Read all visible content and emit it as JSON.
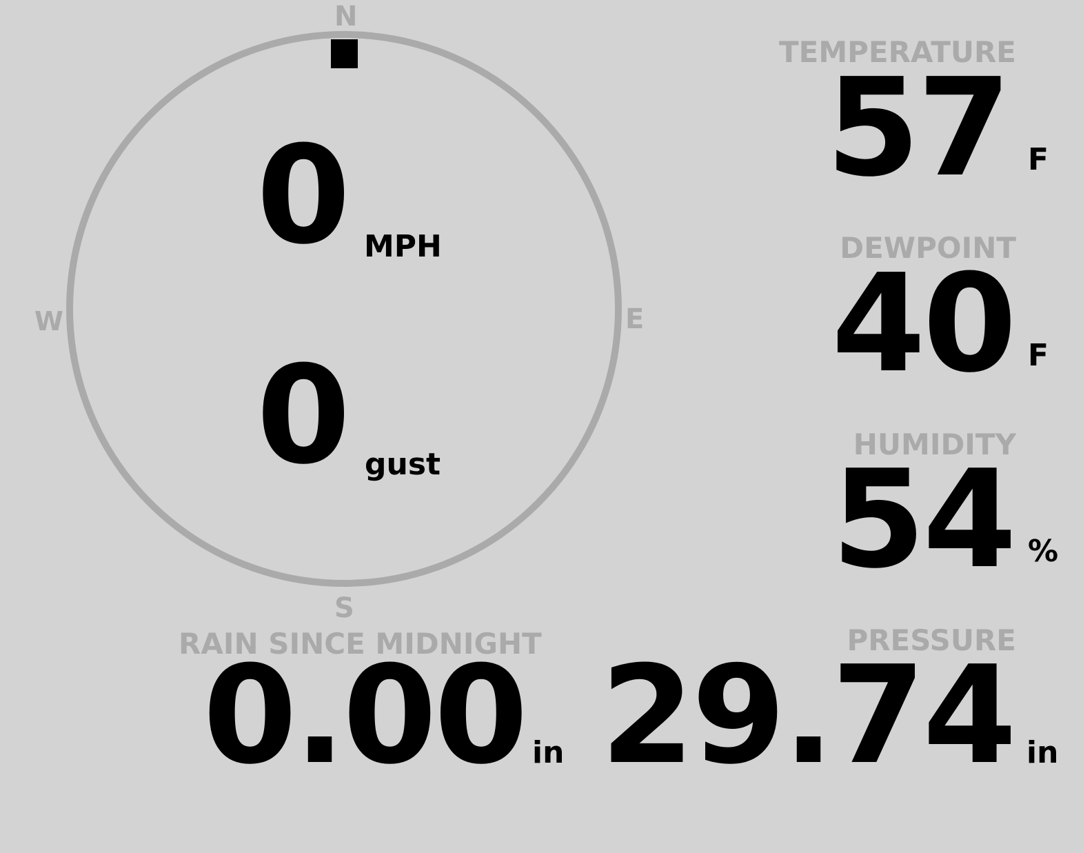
{
  "compass": {
    "north": "N",
    "south": "S",
    "east": "E",
    "west": "W",
    "direction_degrees": 0,
    "ring_color": "#aaaaaa",
    "marker_color": "#000000"
  },
  "wind": {
    "speed": "0",
    "speed_unit": "MPH",
    "gust": "0",
    "gust_unit": "gust"
  },
  "rain": {
    "label": "RAIN SINCE MIDNIGHT",
    "value": "0.00",
    "unit": "in"
  },
  "temperature": {
    "label": "TEMPERATURE",
    "value": "57",
    "unit": "F"
  },
  "dewpoint": {
    "label": "DEWPOINT",
    "value": "40",
    "unit": "F"
  },
  "humidity": {
    "label": "HUMIDITY",
    "value": "54",
    "unit": "%"
  },
  "pressure": {
    "label": "PRESSURE",
    "value": "29.74",
    "unit": "in"
  }
}
